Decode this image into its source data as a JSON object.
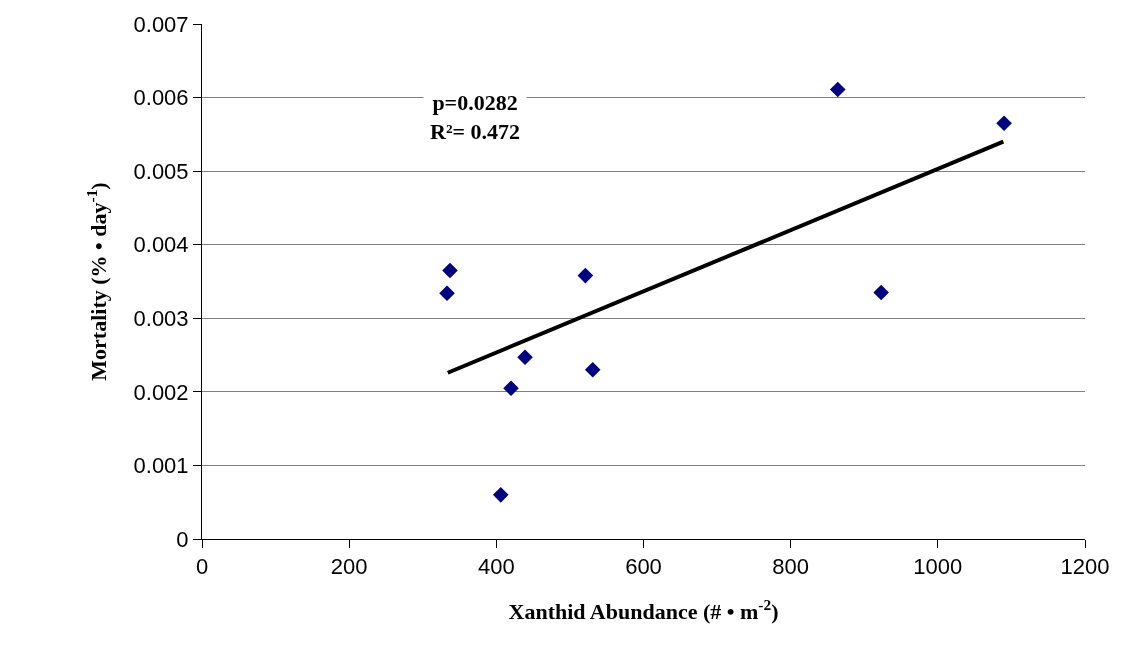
{
  "chart_data": {
    "type": "scatter",
    "xlabel": "Xanthid Abundance (# • m$^{-2}$)",
    "ylabel": "Mortality (% • day$^{-1}$)",
    "annotations": [
      "p=0.0282\nR²= 0.472"
    ],
    "xlim": [
      0,
      1200
    ],
    "xticks": [
      0,
      200,
      400,
      600,
      800,
      1000,
      1200
    ],
    "ylim": [
      0,
      0.007
    ],
    "yticks": [
      0,
      0.001,
      0.002,
      0.003,
      0.004,
      0.005,
      0.006,
      0.007
    ],
    "grid": "y",
    "legend": false,
    "series": [
      {
        "marker": "diamond",
        "color": "#000080",
        "x": [
          337,
          333,
          439,
          420,
          406,
          521,
          531,
          864,
          923,
          1090
        ],
        "values": [
          0.00365,
          0.00334,
          0.00247,
          0.00205,
          0.0006,
          0.00358,
          0.0023,
          0.00611,
          0.00335,
          0.00565
        ]
      },
      {
        "type": "line",
        "color": "#000000",
        "x": [
          334,
          1089
        ],
        "values": [
          0.00226,
          0.0054
        ],
        "line_style": "solid"
      }
    ]
  }
}
